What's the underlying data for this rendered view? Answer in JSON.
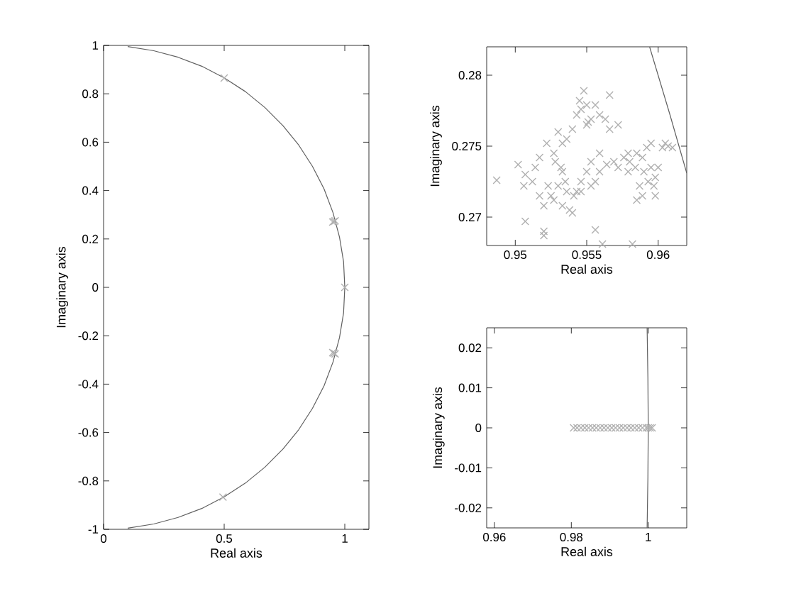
{
  "chart_data": [
    {
      "type": "scatter",
      "xlabel": "Real axis",
      "ylabel": "Imaginary axis",
      "xlim": [
        0,
        1.1
      ],
      "ylim": [
        -1,
        1
      ],
      "xticks": [
        0,
        0.5,
        1
      ],
      "yticks": [
        -1,
        -0.8,
        -0.6,
        -0.4,
        -0.2,
        0,
        0.2,
        0.4,
        0.6,
        0.8,
        1
      ],
      "grid": false,
      "series": [
        {
          "type": "line",
          "marker": "none",
          "color": "#606060",
          "x": [
            0.1,
            0.208,
            0.309,
            0.407,
            0.5,
            0.588,
            0.669,
            0.743,
            0.809,
            0.866,
            0.914,
            0.951,
            0.978,
            0.995,
            1,
            0.995,
            0.978,
            0.951,
            0.914,
            0.866,
            0.809,
            0.743,
            0.669,
            0.588,
            0.5,
            0.407,
            0.309,
            0.208,
            0.1
          ],
          "values": [
            0.995,
            0.978,
            0.951,
            0.914,
            0.866,
            0.809,
            0.743,
            0.669,
            0.588,
            0.5,
            0.407,
            0.309,
            0.208,
            0.105,
            0,
            -0.105,
            -0.208,
            -0.309,
            -0.407,
            -0.5,
            -0.588,
            -0.669,
            -0.743,
            -0.809,
            -0.866,
            -0.914,
            -0.951,
            -0.978,
            -0.995
          ]
        },
        {
          "marker": "cross",
          "color": "#b0b0b0",
          "x": [
            0.5,
            0.955,
            0.96,
            0.95,
            1,
            0.955,
            0.96,
            0.95,
            0.495
          ],
          "values": [
            0.865,
            0.272,
            0.275,
            0.27,
            0,
            -0.272,
            -0.275,
            -0.27,
            -0.867
          ]
        }
      ]
    },
    {
      "type": "scatter",
      "xlabel": "Real axis",
      "ylabel": "Imaginary axis",
      "xlim": [
        0.948,
        0.962
      ],
      "ylim": [
        0.268,
        0.282
      ],
      "xticks": [
        0.95,
        0.955,
        0.96
      ],
      "yticks": [
        0.27,
        0.275,
        0.28
      ],
      "grid": false,
      "series": [
        {
          "type": "line",
          "marker": "none",
          "color": "#606060",
          "x": [
            0.9594,
            0.9608,
            0.962
          ],
          "values": [
            0.282,
            0.2773,
            0.2731
          ]
        },
        {
          "marker": "cross",
          "color": "#b0b0b0",
          "x": [
            0.9487,
            0.9502,
            0.9507,
            0.9506,
            0.9514,
            0.9512,
            0.9507,
            0.952,
            0.952,
            0.952,
            0.9525,
            0.9527,
            0.953,
            0.9532,
            0.9533,
            0.9535,
            0.9536,
            0.9538,
            0.954,
            0.9541,
            0.9543,
            0.9546,
            0.955,
            0.9553,
            0.9556,
            0.9559,
            0.9564,
            0.9569,
            0.9572,
            0.9576,
            0.9579,
            0.9556,
            0.9561,
            0.9582,
            0.9527,
            0.953,
            0.9533,
            0.9536,
            0.954,
            0.9545,
            0.9543,
            0.9546,
            0.955,
            0.9553,
            0.9556,
            0.9559,
            0.9563,
            0.9566,
            0.9572,
            0.9566,
            0.9548,
            0.955,
            0.9522,
            0.9517,
            0.9528,
            0.9585,
            0.9589,
            0.9592,
            0.9595,
            0.959,
            0.9593,
            0.9597,
            0.9598,
            0.9587,
            0.9589,
            0.9595,
            0.96,
            0.9603,
            0.9607,
            0.961,
            0.9605,
            0.9584,
            0.958,
            0.9585,
            0.9579,
            0.9598,
            0.9523,
            0.9517,
            0.9533,
            0.9546,
            0.9553,
            0.9559,
            0.9551
          ],
          "values": [
            0.2726,
            0.2737,
            0.273,
            0.2722,
            0.2735,
            0.2725,
            0.2697,
            0.269,
            0.2687,
            0.2708,
            0.2715,
            0.2712,
            0.2722,
            0.2735,
            0.2732,
            0.2725,
            0.2718,
            0.2705,
            0.2703,
            0.2715,
            0.2718,
            0.2725,
            0.2732,
            0.2722,
            0.2725,
            0.2732,
            0.2737,
            0.2739,
            0.2735,
            0.2742,
            0.2745,
            0.2691,
            0.2681,
            0.2681,
            0.2745,
            0.276,
            0.2752,
            0.2755,
            0.2762,
            0.2782,
            0.2772,
            0.2776,
            0.2765,
            0.2769,
            0.2779,
            0.2772,
            0.2769,
            0.2762,
            0.2765,
            0.2786,
            0.2789,
            0.2779,
            0.2752,
            0.2742,
            0.2739,
            0.2745,
            0.2742,
            0.2749,
            0.2752,
            0.2732,
            0.2725,
            0.2722,
            0.2728,
            0.2722,
            0.2715,
            0.2735,
            0.2735,
            0.2749,
            0.275,
            0.2749,
            0.2752,
            0.2735,
            0.2739,
            0.2712,
            0.2732,
            0.2715,
            0.2722,
            0.2715,
            0.2708,
            0.2718,
            0.2739,
            0.2745,
            0.2767
          ]
        }
      ]
    },
    {
      "type": "scatter",
      "xlabel": "Real axis",
      "ylabel": "Imaginary axis",
      "xlim": [
        0.958,
        1.01
      ],
      "ylim": [
        -0.025,
        0.025
      ],
      "xticks": [
        0.96,
        0.98,
        1
      ],
      "yticks": [
        -0.02,
        -0.01,
        0,
        0.01,
        0.02
      ],
      "grid": false,
      "series": [
        {
          "type": "line",
          "marker": "none",
          "color": "#606060",
          "x": [
            0.9997,
            0.9999,
            1,
            0.9999,
            0.9997
          ],
          "values": [
            -0.025,
            -0.0125,
            0,
            0.0125,
            0.025
          ]
        },
        {
          "marker": "cross",
          "color": "#b0b0b0",
          "x": [
            0.9806,
            0.9815,
            0.9825,
            0.9835,
            0.9845,
            0.9855,
            0.9865,
            0.9875,
            0.9885,
            0.9895,
            0.9905,
            0.9915,
            0.9925,
            0.9935,
            0.9945,
            0.9955,
            0.9965,
            0.9975,
            0.9985,
            0.9995,
            1,
            1.0005,
            1.001
          ],
          "values": [
            0,
            0,
            0,
            0,
            0,
            0,
            0,
            0,
            0,
            0,
            0,
            0,
            0,
            0,
            0,
            0,
            0,
            0,
            0,
            0,
            0,
            0,
            0
          ]
        }
      ]
    }
  ]
}
